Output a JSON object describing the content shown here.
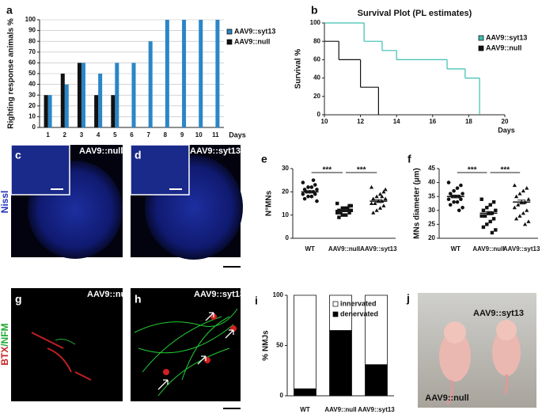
{
  "chart_data": [
    {
      "type": "bar",
      "panel": "a",
      "ylabel": "Righting response animals %",
      "xlabel": "Days",
      "categories": [
        "1",
        "2",
        "3",
        "4",
        "5",
        "6",
        "7",
        "8",
        "9",
        "10",
        "11"
      ],
      "ylim": [
        0,
        100
      ],
      "yticks": [
        0,
        10,
        20,
        30,
        40,
        50,
        60,
        70,
        80,
        90,
        100
      ],
      "grid": true,
      "series": [
        {
          "name": "AAV9::syt13",
          "color": "#2a86c7",
          "values": [
            30,
            40,
            60,
            50,
            60,
            60,
            80,
            100,
            100,
            100,
            100
          ]
        },
        {
          "name": "AAV9::null",
          "color": "#111111",
          "values": [
            30,
            50,
            60,
            30,
            30,
            0,
            0,
            0,
            0,
            0,
            0
          ]
        }
      ]
    },
    {
      "type": "step",
      "panel": "b",
      "title": "Survival Plot (PL estimates)",
      "ylabel": "Survival %",
      "xlabel": "Days",
      "xlim": [
        10,
        20
      ],
      "xticks": [
        10,
        12,
        14,
        16,
        18,
        20
      ],
      "ylim": [
        0,
        100
      ],
      "yticks": [
        0,
        20,
        40,
        60,
        80,
        100
      ],
      "series": [
        {
          "name": "AAV9::syt13",
          "color": "#3cbfb0",
          "x": [
            10,
            12.2,
            13.2,
            14,
            16.8,
            17.8,
            18.6
          ],
          "values": [
            100,
            80,
            70,
            60,
            50,
            40,
            0
          ]
        },
        {
          "name": "AAV9::null",
          "color": "#111111",
          "x": [
            10,
            10.8,
            12,
            13
          ],
          "values": [
            80,
            60,
            30,
            0
          ]
        }
      ]
    },
    {
      "type": "dot",
      "panel": "e",
      "ylabel": "N°MNs",
      "categories": [
        "WT",
        "AAV9::null",
        "AAV9::syt13"
      ],
      "ylim": [
        0,
        30
      ],
      "yticks": [
        0,
        10,
        20,
        30
      ],
      "points": [
        [
          24,
          23,
          22,
          22,
          21,
          21,
          20,
          20,
          20,
          19,
          19,
          18,
          18,
          17,
          16,
          25
        ],
        [
          15,
          14,
          13,
          13,
          12,
          12,
          12,
          12,
          11,
          11,
          11,
          10,
          10,
          9,
          14,
          13
        ],
        [
          22,
          20,
          19,
          18,
          17,
          17,
          16,
          16,
          15,
          15,
          14,
          13,
          12,
          11,
          21,
          18
        ]
      ],
      "means": [
        20,
        12,
        16
      ],
      "errors": [
        0.5,
        0.4,
        0.6
      ],
      "significance": [
        "***",
        "***"
      ]
    },
    {
      "type": "dot",
      "panel": "f",
      "ylabel": "MNs diameter (µm)",
      "categories": [
        "WT",
        "AAV9::null",
        "AAV9::syt13"
      ],
      "ylim": [
        20,
        45
      ],
      "yticks": [
        20,
        25,
        30,
        35,
        40,
        45
      ],
      "points": [
        [
          40,
          39,
          38,
          37,
          36,
          36,
          35,
          35,
          35,
          34,
          34,
          33,
          33,
          32,
          31,
          30
        ],
        [
          34,
          33,
          32,
          31,
          30,
          30,
          29,
          29,
          28,
          28,
          27,
          26,
          25,
          24,
          23,
          22
        ],
        [
          39,
          38,
          37,
          36,
          35,
          34,
          33,
          33,
          32,
          31,
          30,
          29,
          28,
          27,
          26,
          25
        ]
      ],
      "means": [
        35,
        29,
        33
      ],
      "errors": [
        0.5,
        0.6,
        0.7
      ],
      "significance": [
        "***",
        "***"
      ]
    },
    {
      "type": "stacked_bar",
      "panel": "i",
      "ylabel": "% NMJs",
      "categories": [
        "WT",
        "AAV9::null",
        "AAV9::syt13"
      ],
      "ylim": [
        0,
        100
      ],
      "yticks": [
        0,
        50,
        100
      ],
      "series": [
        {
          "name": "denervated",
          "color": "#000000",
          "values": [
            7,
            65,
            31
          ]
        },
        {
          "name": "innervated",
          "color": "#ffffff",
          "values": [
            93,
            35,
            69
          ]
        }
      ]
    }
  ],
  "images": [
    {
      "panel": "c",
      "label": "AAV9::null"
    },
    {
      "panel": "d",
      "label": "AAV9::syt13"
    },
    {
      "panel": "g",
      "label": "AAV9::null"
    },
    {
      "panel": "h",
      "label": "AAV9::syt13"
    },
    {
      "panel": "j",
      "label": "AAV9::syt13",
      "label2": "AAV9::null"
    }
  ],
  "side_labels": {
    "nissl": "Nissl",
    "stain": [
      "BTX",
      "/",
      "NFM"
    ]
  }
}
